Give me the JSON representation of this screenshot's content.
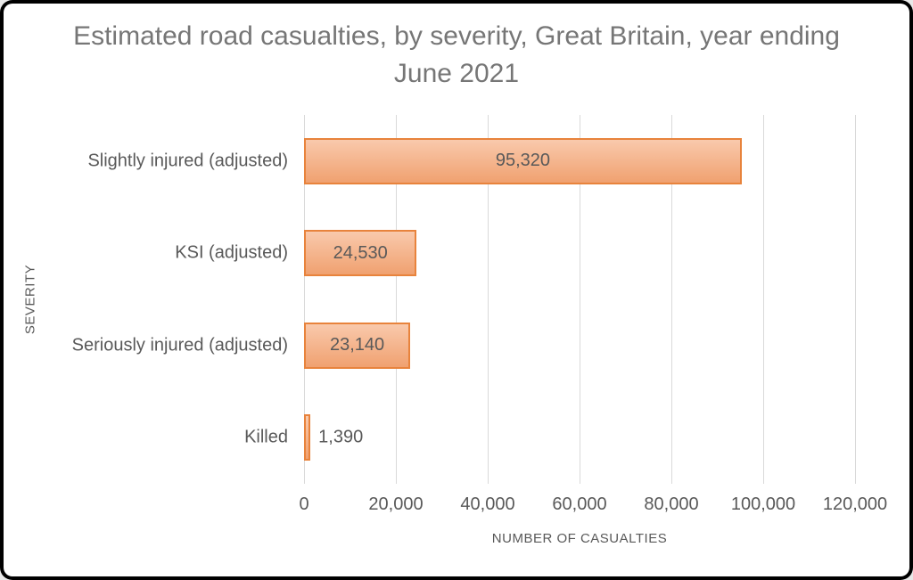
{
  "chart_data": {
    "type": "bar",
    "orientation": "horizontal",
    "title": "Estimated road casualties, by severity, Great Britain, year ending June 2021",
    "categories": [
      "Slightly injured (adjusted)",
      "KSI (adjusted)",
      "Seriously injured (adjusted)",
      "Killed"
    ],
    "values": [
      95320,
      24530,
      23140,
      1390
    ],
    "value_labels": [
      "95,320",
      "24,530",
      "23,140",
      "1,390"
    ],
    "xlabel": "NUMBER OF CASUALTIES",
    "ylabel": "SEVERITY",
    "xlim": [
      0,
      120000
    ],
    "x_ticks": [
      0,
      20000,
      40000,
      60000,
      80000,
      100000,
      120000
    ],
    "x_tick_labels": [
      "0",
      "20,000",
      "40,000",
      "60,000",
      "80,000",
      "100,000",
      "120,000"
    ],
    "grid": true,
    "legend": false,
    "colors": {
      "bar_fill_top": "#f9c9ac",
      "bar_fill_bottom": "#f0a170",
      "bar_border": "#e8833c",
      "gridline": "#d9d9d9",
      "title_text": "#767676",
      "axis_text": "#595959",
      "label_text": "#595959",
      "frame_border": "#000000",
      "background": "#ffffff"
    }
  }
}
